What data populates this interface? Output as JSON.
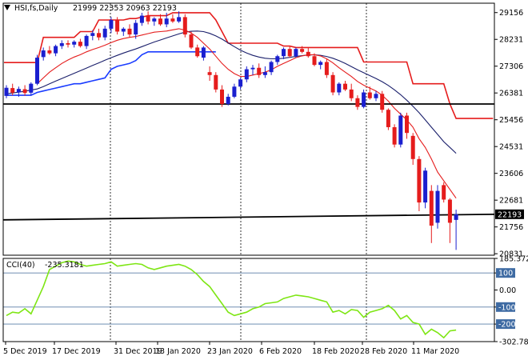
{
  "header": {
    "symbol": "HSI,fs,Daily",
    "ohlc": "21999 22353 20963 22193"
  },
  "chart_data": [
    {
      "type": "candlestick",
      "x_labels": [
        "5 Dec 2019",
        "17 Dec 2019",
        "31 Dec 2019",
        "13 Jan 2020",
        "23 Jan 2020",
        "6 Feb 2020",
        "18 Feb 2020",
        "28 Feb 2020",
        "11 Mar 2020"
      ],
      "y_ticks": [
        29156,
        28231,
        27306,
        26381,
        25456,
        24531,
        23606,
        22681,
        21756,
        20831
      ],
      "ylim": [
        20780,
        29480
      ],
      "last_price": 22193,
      "candles": [
        {
          "o": 26280,
          "h": 26650,
          "l": 26200,
          "c": 26560
        },
        {
          "o": 26550,
          "h": 26700,
          "l": 26300,
          "c": 26390
        },
        {
          "o": 26400,
          "h": 26600,
          "l": 26250,
          "c": 26520
        },
        {
          "o": 26510,
          "h": 26650,
          "l": 26280,
          "c": 26380
        },
        {
          "o": 26390,
          "h": 26750,
          "l": 26300,
          "c": 26700
        },
        {
          "o": 26700,
          "h": 27700,
          "l": 26650,
          "c": 27600
        },
        {
          "o": 27620,
          "h": 27950,
          "l": 27500,
          "c": 27850
        },
        {
          "o": 27850,
          "h": 28000,
          "l": 27700,
          "c": 27750
        },
        {
          "o": 27750,
          "h": 28050,
          "l": 27650,
          "c": 28000
        },
        {
          "o": 28000,
          "h": 28200,
          "l": 27900,
          "c": 28100
        },
        {
          "o": 28100,
          "h": 28200,
          "l": 27950,
          "c": 28050
        },
        {
          "o": 28050,
          "h": 28200,
          "l": 27950,
          "c": 28150
        },
        {
          "o": 28150,
          "h": 28250,
          "l": 27950,
          "c": 28000
        },
        {
          "o": 28000,
          "h": 28400,
          "l": 27900,
          "c": 28350
        },
        {
          "o": 28350,
          "h": 28550,
          "l": 28200,
          "c": 28450
        },
        {
          "o": 28450,
          "h": 28600,
          "l": 28200,
          "c": 28300
        },
        {
          "o": 28300,
          "h": 28700,
          "l": 28200,
          "c": 28600
        },
        {
          "o": 28600,
          "h": 29000,
          "l": 28450,
          "c": 28900
        },
        {
          "o": 28900,
          "h": 29000,
          "l": 28400,
          "c": 28500
        },
        {
          "o": 28500,
          "h": 28650,
          "l": 28350,
          "c": 28600
        },
        {
          "o": 28600,
          "h": 28750,
          "l": 28300,
          "c": 28400
        },
        {
          "o": 28400,
          "h": 28900,
          "l": 28250,
          "c": 28800
        },
        {
          "o": 28800,
          "h": 29150,
          "l": 28700,
          "c": 29050
        },
        {
          "o": 29050,
          "h": 29200,
          "l": 28750,
          "c": 28850
        },
        {
          "o": 28850,
          "h": 29000,
          "l": 28700,
          "c": 28950
        },
        {
          "o": 28950,
          "h": 29100,
          "l": 28700,
          "c": 28750
        },
        {
          "o": 28750,
          "h": 29150,
          "l": 28650,
          "c": 28950
        },
        {
          "o": 28950,
          "h": 29100,
          "l": 28800,
          "c": 28850
        },
        {
          "o": 28850,
          "h": 29200,
          "l": 28800,
          "c": 29000
        },
        {
          "o": 29000,
          "h": 29100,
          "l": 28300,
          "c": 28400
        },
        {
          "o": 28400,
          "h": 28500,
          "l": 27900,
          "c": 27950
        },
        {
          "o": 27950,
          "h": 28050,
          "l": 27600,
          "c": 27650
        },
        {
          "o": 27600,
          "h": 28000,
          "l": 27500,
          "c": 27950
        },
        {
          "o": 27100,
          "h": 27300,
          "l": 26800,
          "c": 27000
        },
        {
          "o": 27000,
          "h": 27100,
          "l": 26400,
          "c": 26500
        },
        {
          "o": 26500,
          "h": 26650,
          "l": 25900,
          "c": 26000
        },
        {
          "o": 26000,
          "h": 26350,
          "l": 25950,
          "c": 26250
        },
        {
          "o": 26250,
          "h": 26700,
          "l": 26200,
          "c": 26600
        },
        {
          "o": 26600,
          "h": 26900,
          "l": 26500,
          "c": 26850
        },
        {
          "o": 26850,
          "h": 27300,
          "l": 26750,
          "c": 27200
        },
        {
          "o": 27200,
          "h": 27350,
          "l": 27000,
          "c": 27250
        },
        {
          "o": 27250,
          "h": 27400,
          "l": 26900,
          "c": 27000
        },
        {
          "o": 27000,
          "h": 27300,
          "l": 26900,
          "c": 27100
        },
        {
          "o": 27100,
          "h": 27500,
          "l": 27000,
          "c": 27450
        },
        {
          "o": 27450,
          "h": 27700,
          "l": 27350,
          "c": 27650
        },
        {
          "o": 27650,
          "h": 27950,
          "l": 27550,
          "c": 27900
        },
        {
          "o": 27900,
          "h": 28000,
          "l": 27600,
          "c": 27650
        },
        {
          "o": 27650,
          "h": 27950,
          "l": 27600,
          "c": 27900
        },
        {
          "o": 27900,
          "h": 28000,
          "l": 27750,
          "c": 27800
        },
        {
          "o": 27800,
          "h": 27950,
          "l": 27600,
          "c": 27650
        },
        {
          "o": 27650,
          "h": 27750,
          "l": 27300,
          "c": 27350
        },
        {
          "o": 27350,
          "h": 27500,
          "l": 27200,
          "c": 27450
        },
        {
          "o": 27450,
          "h": 27550,
          "l": 26900,
          "c": 27000
        },
        {
          "o": 27000,
          "h": 27100,
          "l": 26300,
          "c": 26400
        },
        {
          "o": 26400,
          "h": 26750,
          "l": 26300,
          "c": 26700
        },
        {
          "o": 26700,
          "h": 26800,
          "l": 26450,
          "c": 26500
        },
        {
          "o": 26500,
          "h": 26700,
          "l": 26100,
          "c": 26200
        },
        {
          "o": 26200,
          "h": 26300,
          "l": 25800,
          "c": 25900
        },
        {
          "o": 25900,
          "h": 26500,
          "l": 25850,
          "c": 26400
        },
        {
          "o": 26400,
          "h": 26600,
          "l": 26150,
          "c": 26200
        },
        {
          "o": 26200,
          "h": 26450,
          "l": 26100,
          "c": 26350
        },
        {
          "o": 26350,
          "h": 26450,
          "l": 25700,
          "c": 25800
        },
        {
          "o": 25800,
          "h": 25850,
          "l": 25100,
          "c": 25200
        },
        {
          "o": 25200,
          "h": 25300,
          "l": 24500,
          "c": 24600
        },
        {
          "o": 24600,
          "h": 25700,
          "l": 24500,
          "c": 25600
        },
        {
          "o": 25600,
          "h": 25700,
          "l": 24800,
          "c": 25000
        },
        {
          "o": 24900,
          "h": 25000,
          "l": 23900,
          "c": 24100
        },
        {
          "o": 24100,
          "h": 24200,
          "l": 22300,
          "c": 22600
        },
        {
          "o": 22600,
          "h": 23800,
          "l": 22400,
          "c": 23700
        },
        {
          "o": 23000,
          "h": 23200,
          "l": 21200,
          "c": 21800
        },
        {
          "o": 21900,
          "h": 23200,
          "l": 21700,
          "c": 23000
        },
        {
          "o": 23200,
          "h": 23300,
          "l": 22600,
          "c": 22700
        },
        {
          "o": 22700,
          "h": 22750,
          "l": 21200,
          "c": 21900
        },
        {
          "o": 21999,
          "h": 22353,
          "l": 20963,
          "c": 22193
        }
      ],
      "ma_red": [
        null,
        null,
        null,
        null,
        null,
        26700,
        26900,
        27100,
        27250,
        27400,
        27520,
        27620,
        27700,
        27800,
        27880,
        27950,
        28030,
        28120,
        28200,
        28260,
        28300,
        28330,
        28380,
        28430,
        28480,
        28500,
        28520,
        28560,
        28600,
        28550,
        28450,
        28300,
        28100,
        27900,
        27650,
        27400,
        27200,
        27050,
        26950,
        26950,
        27000,
        27050,
        27100,
        27180,
        27300,
        27400,
        27500,
        27600,
        27660,
        27700,
        27700,
        27660,
        27560,
        27420,
        27250,
        27100,
        26950,
        26780,
        26650,
        26550,
        26450,
        26300,
        26100,
        25850,
        25650,
        25450,
        25200,
        24800,
        24500,
        24100,
        23650,
        23350,
        23050,
        22750
      ],
      "ma_navy": [
        26350,
        26380,
        26410,
        26440,
        26480,
        26520,
        26600,
        26700,
        26790,
        26880,
        26970,
        27060,
        27150,
        27240,
        27330,
        27420,
        27510,
        27600,
        27680,
        27760,
        27830,
        27900,
        27980,
        28060,
        28140,
        28210,
        28280,
        28350,
        28420,
        28480,
        28510,
        28520,
        28500,
        28440,
        28350,
        28240,
        28110,
        27980,
        27860,
        27760,
        27680,
        27620,
        27580,
        27560,
        27560,
        27580,
        27610,
        27640,
        27670,
        27690,
        27700,
        27680,
        27640,
        27580,
        27500,
        27400,
        27290,
        27180,
        27080,
        26980,
        26880,
        26770,
        26640,
        26490,
        26320,
        26130,
        25920,
        25700,
        25450,
        25200,
        24950,
        24700,
        24500,
        24300
      ],
      "blue_line": [
        26300,
        26300,
        26300,
        26300,
        26300,
        26400,
        26450,
        26500,
        26550,
        26600,
        26650,
        26700,
        26700,
        26750,
        26800,
        26850,
        26900,
        27200,
        27300,
        27350,
        27400,
        27500,
        27700,
        27800,
        27800,
        27800,
        27800,
        27800,
        27800,
        27800,
        27800,
        27800,
        27800,
        27800,
        27800
      ],
      "red_step": [
        27430,
        27430,
        27430,
        27430,
        27430,
        27430,
        28300,
        28300,
        28300,
        28300,
        28300,
        28300,
        28500,
        28500,
        28500,
        28900,
        28900,
        28900,
        28900,
        28900,
        28950,
        28950,
        29000,
        29050,
        29050,
        29050,
        29050,
        29150,
        29150,
        29150,
        29150,
        29150,
        29150,
        29150,
        28900,
        28500,
        28100,
        28100,
        28100,
        28100,
        28100,
        28100,
        28100,
        28100,
        28100,
        28000,
        28000,
        27950,
        27950,
        27950,
        27950,
        27950,
        27950,
        27950,
        27950,
        27950,
        27950,
        27950,
        27450,
        27450,
        27450,
        27450,
        27450,
        27450,
        27450,
        27450,
        26700,
        26700,
        26700,
        26700,
        26700,
        26700,
        26000,
        25500,
        25500,
        25500,
        25500,
        25500,
        25500,
        25500
      ],
      "horizontal_levels": [
        {
          "name": "support-1",
          "from": 26000,
          "to": 26000
        },
        {
          "name": "support-2",
          "from": 22000,
          "to": 22193
        }
      ]
    },
    {
      "type": "line",
      "indicator": "CCI(40)",
      "indicator_value": "-235.3181",
      "y_ticks": [
        "185.3722",
        "100",
        "0.00",
        "-100",
        "-200",
        "-302.786"
      ],
      "levels": [
        100,
        -100,
        -200
      ],
      "ylim": [
        -302.786,
        185.3722
      ],
      "values": [
        -150,
        -130,
        -135,
        -110,
        -140,
        -60,
        20,
        120,
        140,
        160,
        170,
        165,
        150,
        140,
        145,
        150,
        155,
        165,
        140,
        145,
        150,
        155,
        150,
        130,
        120,
        130,
        140,
        145,
        150,
        140,
        120,
        90,
        50,
        20,
        -30,
        -80,
        -130,
        -150,
        -140,
        -130,
        -110,
        -100,
        -80,
        -75,
        -70,
        -50,
        -40,
        -30,
        -35,
        -40,
        -50,
        -60,
        -70,
        -130,
        -120,
        -140,
        -115,
        -120,
        -160,
        -130,
        -120,
        -110,
        -90,
        -120,
        -170,
        -150,
        -190,
        -200,
        -260,
        -230,
        -250,
        -280,
        -240,
        -235
      ]
    }
  ]
}
